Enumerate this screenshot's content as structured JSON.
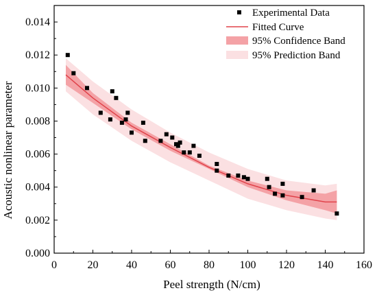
{
  "chart_data": {
    "type": "scatter",
    "title": "",
    "xlabel": "Peel strength (N/cm)",
    "ylabel": "Acoustic nonlinear parameter",
    "xlim": [
      0,
      160
    ],
    "ylim": [
      0,
      0.015
    ],
    "xticks": [
      "0",
      "20",
      "40",
      "60",
      "80",
      "100",
      "120",
      "140",
      "160"
    ],
    "yticks": [
      "0.000",
      "0.002",
      "0.004",
      "0.006",
      "0.008",
      "0.010",
      "0.012",
      "0.014"
    ],
    "grid": false,
    "legend_position": "top-right",
    "legend": {
      "experimental": "Experimental Data",
      "fitted": "Fitted Curve",
      "confidence": "95% Confidence Band",
      "prediction": "95% Prediction Band"
    },
    "colors": {
      "points": "#000000",
      "fitted_curve": "#e0424a",
      "confidence_band": "#f4a2a6",
      "prediction_band": "#fbe0e2"
    },
    "series": [
      {
        "name": "Experimental Data",
        "points": [
          [
            7,
            0.012
          ],
          [
            10,
            0.0109
          ],
          [
            17,
            0.01
          ],
          [
            24,
            0.0085
          ],
          [
            29,
            0.0081
          ],
          [
            30,
            0.0098
          ],
          [
            32,
            0.0094
          ],
          [
            35,
            0.0079
          ],
          [
            37,
            0.0081
          ],
          [
            38,
            0.0085
          ],
          [
            40,
            0.0073
          ],
          [
            46,
            0.0079
          ],
          [
            47,
            0.0068
          ],
          [
            55,
            0.0068
          ],
          [
            58,
            0.0072
          ],
          [
            61,
            0.007
          ],
          [
            63,
            0.0066
          ],
          [
            64,
            0.0065
          ],
          [
            65,
            0.0067
          ],
          [
            67,
            0.0061
          ],
          [
            70,
            0.0061
          ],
          [
            72,
            0.0065
          ],
          [
            75,
            0.0059
          ],
          [
            84,
            0.005
          ],
          [
            84,
            0.0054
          ],
          [
            90,
            0.0047
          ],
          [
            95,
            0.0047
          ],
          [
            98,
            0.0046
          ],
          [
            100,
            0.0045
          ],
          [
            110,
            0.0045
          ],
          [
            111,
            0.004
          ],
          [
            114,
            0.0036
          ],
          [
            118,
            0.0035
          ],
          [
            118,
            0.0042
          ],
          [
            128,
            0.0034
          ],
          [
            134,
            0.0038
          ],
          [
            146,
            0.0024
          ]
        ]
      },
      {
        "name": "Fitted Curve",
        "x": [
          6,
          20,
          40,
          60,
          80,
          100,
          120,
          140,
          146
        ],
        "y": [
          0.0108,
          0.0094,
          0.0077,
          0.0064,
          0.0052,
          0.0042,
          0.0035,
          0.0031,
          0.0031
        ],
        "ci_lo": [
          0.0102,
          0.0091,
          0.0075,
          0.0062,
          0.0051,
          0.004,
          0.0032,
          0.0026,
          0.0024
        ],
        "ci_hi": [
          0.0114,
          0.0097,
          0.0079,
          0.0066,
          0.0053,
          0.0044,
          0.0038,
          0.0036,
          0.0038
        ],
        "pi_lo": [
          0.0098,
          0.0084,
          0.0068,
          0.0055,
          0.0044,
          0.0033,
          0.0026,
          0.0021,
          0.002
        ],
        "pi_hi": [
          0.0118,
          0.0104,
          0.0087,
          0.0073,
          0.0061,
          0.0051,
          0.0044,
          0.0041,
          0.0042
        ]
      }
    ]
  }
}
